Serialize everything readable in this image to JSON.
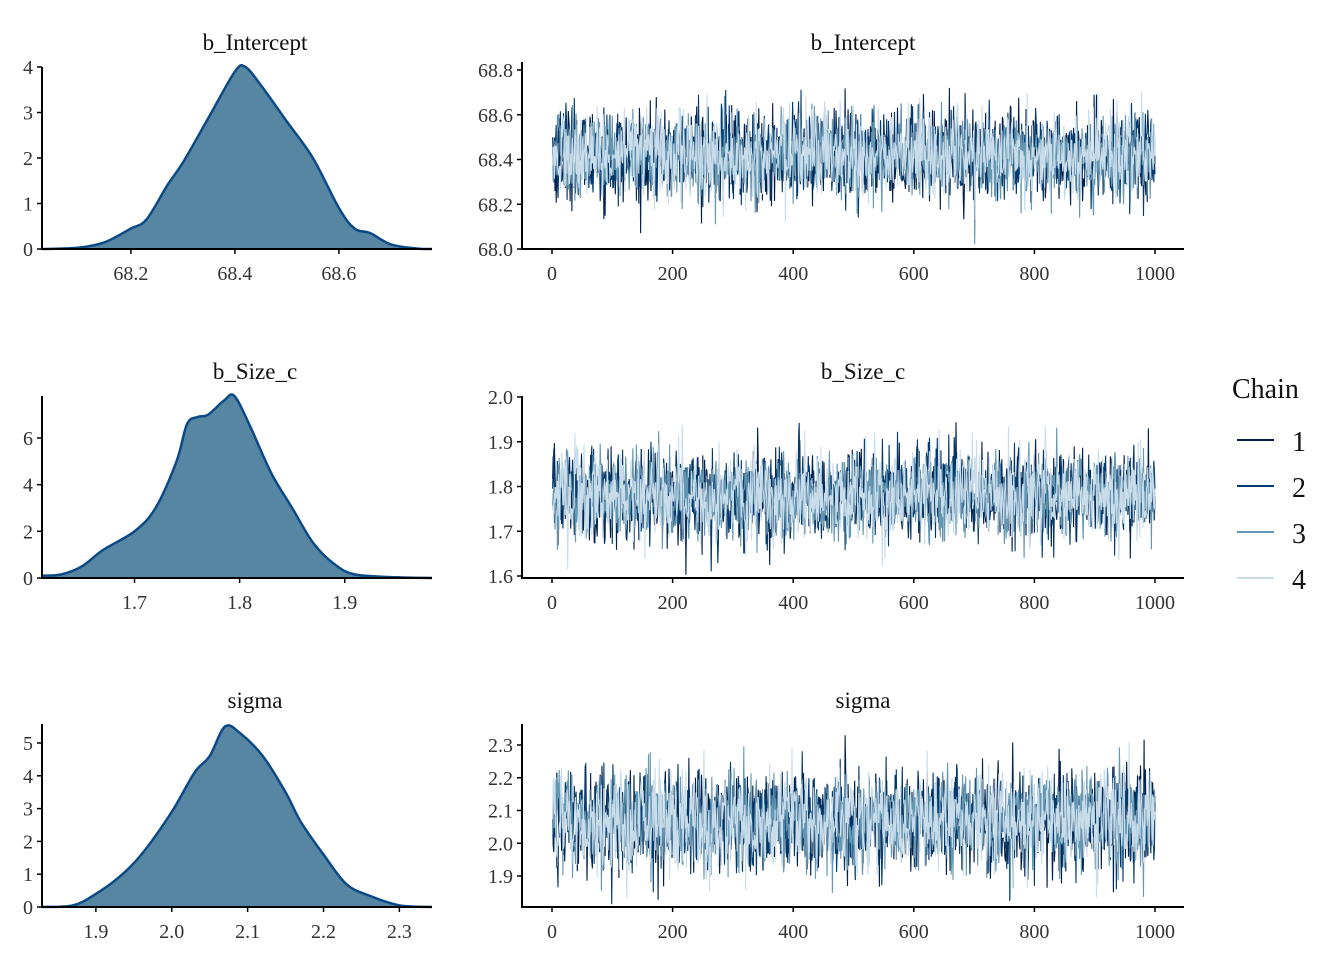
{
  "chart_data": {
    "type": "line",
    "title": "",
    "legend": {
      "title": "Chain",
      "placement": "right",
      "entries": [
        "1",
        "2",
        "3",
        "4"
      ]
    },
    "colors": {
      "density_fill": "#5686a2",
      "density_line": "#0b4a87",
      "chains": [
        "#011f4b",
        "#03396c",
        "#6497b1",
        "#c9dcea"
      ]
    },
    "panels": [
      {
        "parameter": "b_Intercept",
        "density": {
          "xlim": [
            68.029,
            68.779
          ],
          "ylim": [
            0,
            4
          ],
          "xticks": [
            "68.2",
            "68.4",
            "68.6"
          ],
          "yticks": [
            "0",
            "1",
            "2",
            "3",
            "4"
          ],
          "x": [
            68.03,
            68.1,
            68.15,
            68.2,
            68.23,
            68.27,
            68.3,
            68.35,
            68.4,
            68.42,
            68.45,
            68.5,
            68.55,
            68.6,
            68.63,
            68.66,
            68.7,
            68.75,
            68.779
          ],
          "y": [
            0,
            0.03,
            0.15,
            0.45,
            0.65,
            1.4,
            1.9,
            2.9,
            3.9,
            4.0,
            3.6,
            2.8,
            2.0,
            0.9,
            0.45,
            0.35,
            0.1,
            0.01,
            0
          ]
        },
        "trace": {
          "iterations": 1000,
          "chains": 4,
          "mean": 68.42,
          "sd": 0.1,
          "xlim": [
            0,
            1000
          ],
          "ylim": [
            68.0,
            68.8
          ],
          "xticks": [
            "0",
            "200",
            "400",
            "600",
            "800",
            "1000"
          ],
          "yticks": [
            "68.0",
            "68.2",
            "68.4",
            "68.6",
            "68.8"
          ]
        }
      },
      {
        "parameter": "b_Size_c",
        "density": {
          "xlim": [
            1.612,
            1.983
          ],
          "ylim": [
            0,
            6
          ],
          "xticks": [
            "1.7",
            "1.8",
            "1.9"
          ],
          "yticks": [
            "0",
            "2",
            "4",
            "6"
          ],
          "x": [
            1.612,
            1.63,
            1.65,
            1.67,
            1.7,
            1.72,
            1.74,
            1.75,
            1.76,
            1.77,
            1.785,
            1.795,
            1.81,
            1.83,
            1.85,
            1.87,
            1.89,
            1.91,
            1.95,
            1.983
          ],
          "y": [
            0.1,
            0.15,
            0.5,
            1.2,
            2,
            3,
            5,
            6.6,
            6.9,
            7.0,
            7.6,
            7.8,
            6.5,
            4.5,
            3,
            1.5,
            0.6,
            0.15,
            0.03,
            0
          ]
        },
        "trace": {
          "iterations": 1000,
          "chains": 4,
          "mean": 1.78,
          "sd": 0.05,
          "xlim": [
            0,
            1000
          ],
          "ylim": [
            1.6,
            2.0
          ],
          "xticks": [
            "0",
            "200",
            "400",
            "600",
            "800",
            "1000"
          ],
          "yticks": [
            "1.6",
            "1.7",
            "1.8",
            "1.9",
            "2.0"
          ]
        }
      },
      {
        "parameter": "sigma",
        "density": {
          "xlim": [
            1.829,
            2.343
          ],
          "ylim": [
            0,
            5
          ],
          "xticks": [
            "1.9",
            "2.0",
            "2.1",
            "2.2",
            "2.3"
          ],
          "yticks": [
            "0",
            "1",
            "2",
            "3",
            "4",
            "5"
          ],
          "x": [
            1.829,
            1.87,
            1.9,
            1.93,
            1.96,
            2.0,
            2.03,
            2.05,
            2.07,
            2.09,
            2.12,
            2.15,
            2.17,
            2.2,
            2.23,
            2.26,
            2.3,
            2.343
          ],
          "y": [
            0,
            0.05,
            0.4,
            0.9,
            1.6,
            2.9,
            4.1,
            4.6,
            5.5,
            5.3,
            4.6,
            3.5,
            2.6,
            1.6,
            0.7,
            0.35,
            0.05,
            0
          ]
        },
        "trace": {
          "iterations": 1000,
          "chains": 4,
          "mean": 2.07,
          "sd": 0.075,
          "xlim": [
            0,
            1000
          ],
          "ylim": [
            1.8,
            2.34
          ],
          "xticks": [
            "0",
            "200",
            "400",
            "600",
            "800",
            "1000"
          ],
          "yticks": [
            "1.9",
            "2.0",
            "2.1",
            "2.2",
            "2.3"
          ]
        }
      }
    ]
  }
}
